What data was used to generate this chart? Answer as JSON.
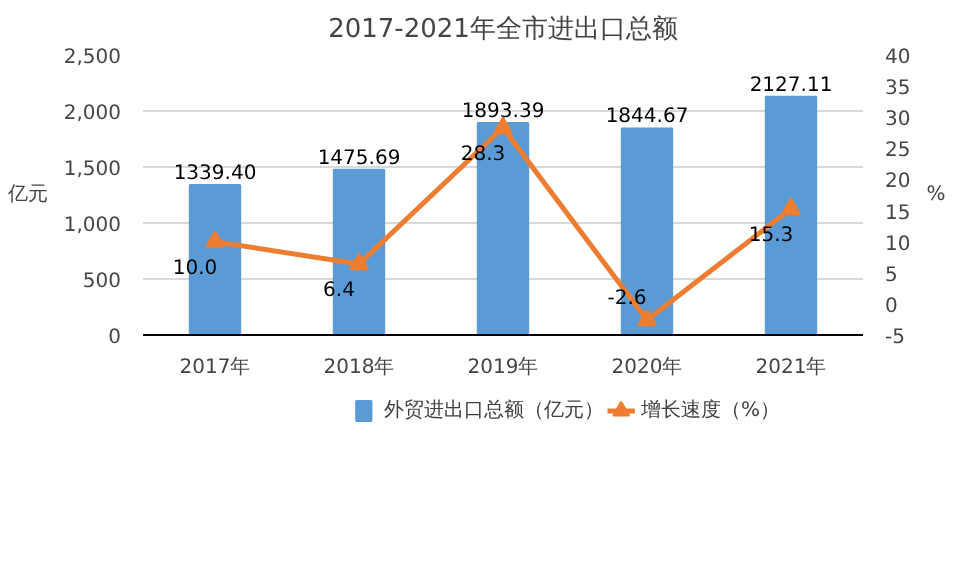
{
  "chart_data": {
    "type": "bar",
    "title": "2017-2021年全市进出口总额",
    "categories": [
      "2017年",
      "2018年",
      "2019年",
      "2020年",
      "2021年"
    ],
    "series": [
      {
        "name": "外贸进出口总额（亿元）",
        "color": "#5b9bd5",
        "values": [
          1339.4,
          1475.69,
          1893.39,
          1844.67,
          2127.11
        ],
        "value_labels": [
          "1339.40",
          "1475.69",
          "1893.39",
          "1844.67",
          "2127.11"
        ]
      },
      {
        "name": "增长速度（%）",
        "type": "line",
        "axis": "y2",
        "color": "#ed7d31",
        "values": [
          10.0,
          6.4,
          28.3,
          -2.6,
          15.3
        ],
        "value_labels": [
          "10.0",
          "6.4",
          "28.3",
          "-2.6",
          "15.3"
        ]
      }
    ],
    "ylabel": "亿元",
    "y2label": "%",
    "ylim": [
      0,
      2500
    ],
    "yticks": [
      0,
      500,
      {
        "value": 1000,
        "label": "1,000"
      },
      {
        "value": 1500,
        "label": "1,500"
      },
      {
        "value": 2000,
        "label": "2,000"
      },
      {
        "value": 2500,
        "label": "2,500"
      }
    ],
    "y2lim": [
      -5,
      40
    ],
    "y2ticks": [
      -5,
      0,
      5,
      10,
      15,
      20,
      25,
      30,
      35,
      40
    ],
    "grid": "y",
    "legend": "bottom",
    "marker": "triangle",
    "line_style": "solid"
  }
}
